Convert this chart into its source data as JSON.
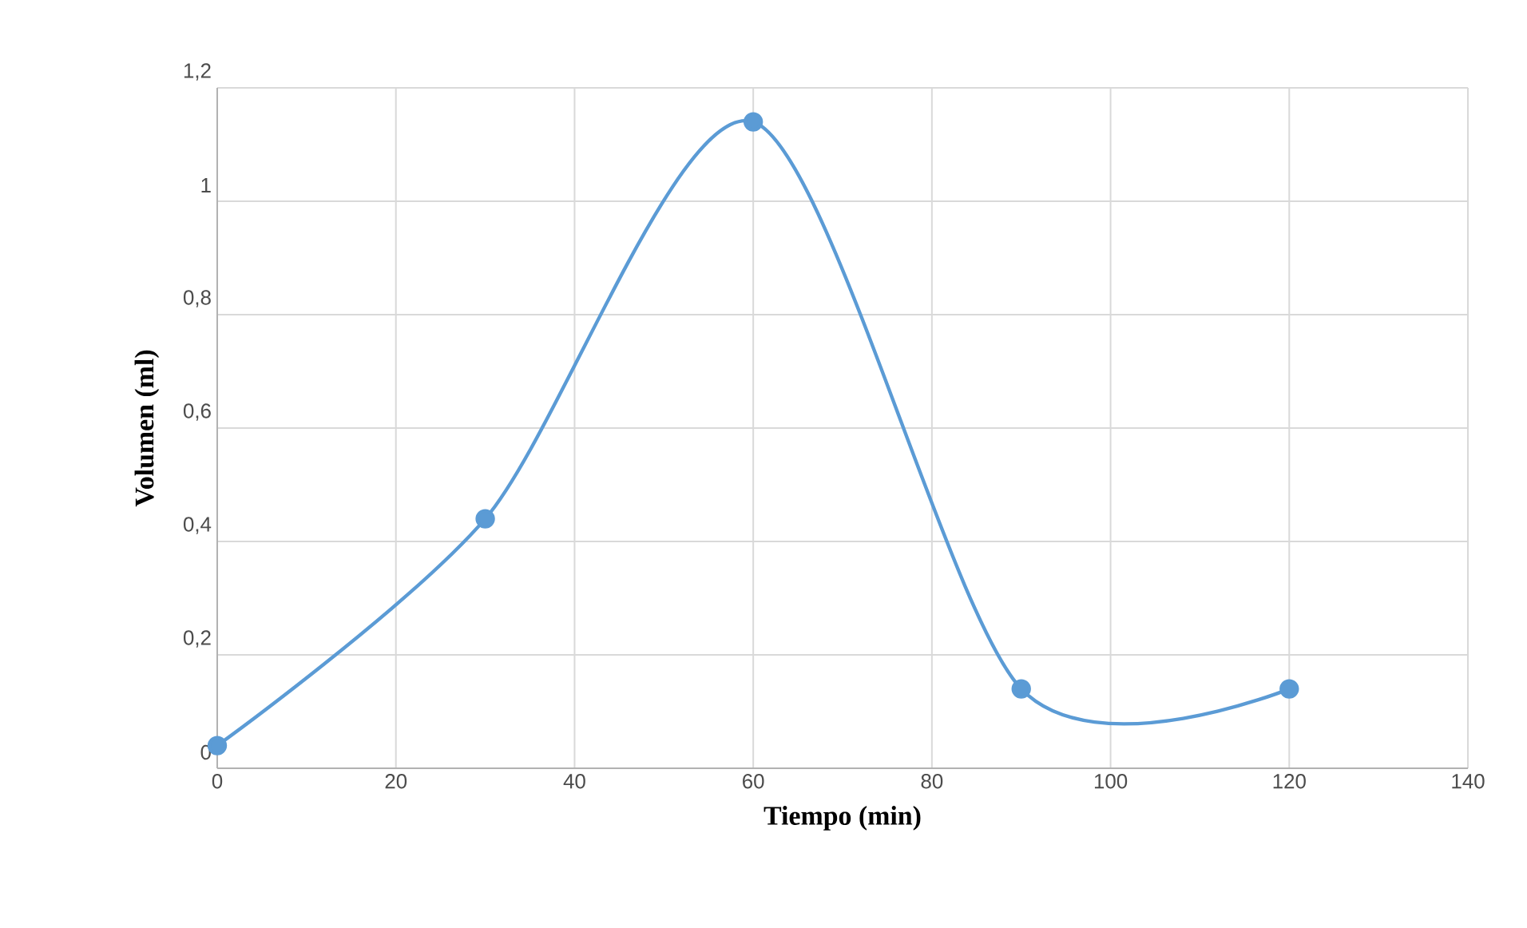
{
  "chart_data": {
    "type": "line",
    "xlabel": "Tiempo (min)",
    "ylabel": "Volumen (ml)",
    "x": [
      0,
      30,
      60,
      90,
      120
    ],
    "series": [
      {
        "color": "#5b9bd5",
        "values": [
          0.04,
          0.44,
          1.14,
          0.14,
          0.14
        ]
      }
    ],
    "xlim": [
      0,
      140
    ],
    "ylim": [
      0,
      1.2
    ],
    "xticks": [
      0,
      20,
      40,
      60,
      80,
      100,
      120,
      140
    ],
    "yticks": [
      0,
      {
        "value": 0.2,
        "label": "0,2"
      },
      {
        "value": 0.4,
        "label": "0,4"
      },
      {
        "value": 0.6,
        "label": "0,6"
      },
      {
        "value": 0.8,
        "label": "0,8"
      },
      1,
      {
        "value": 1.2,
        "label": "1,2"
      }
    ],
    "grid": true,
    "marker": "circle",
    "line_style": "solid"
  }
}
